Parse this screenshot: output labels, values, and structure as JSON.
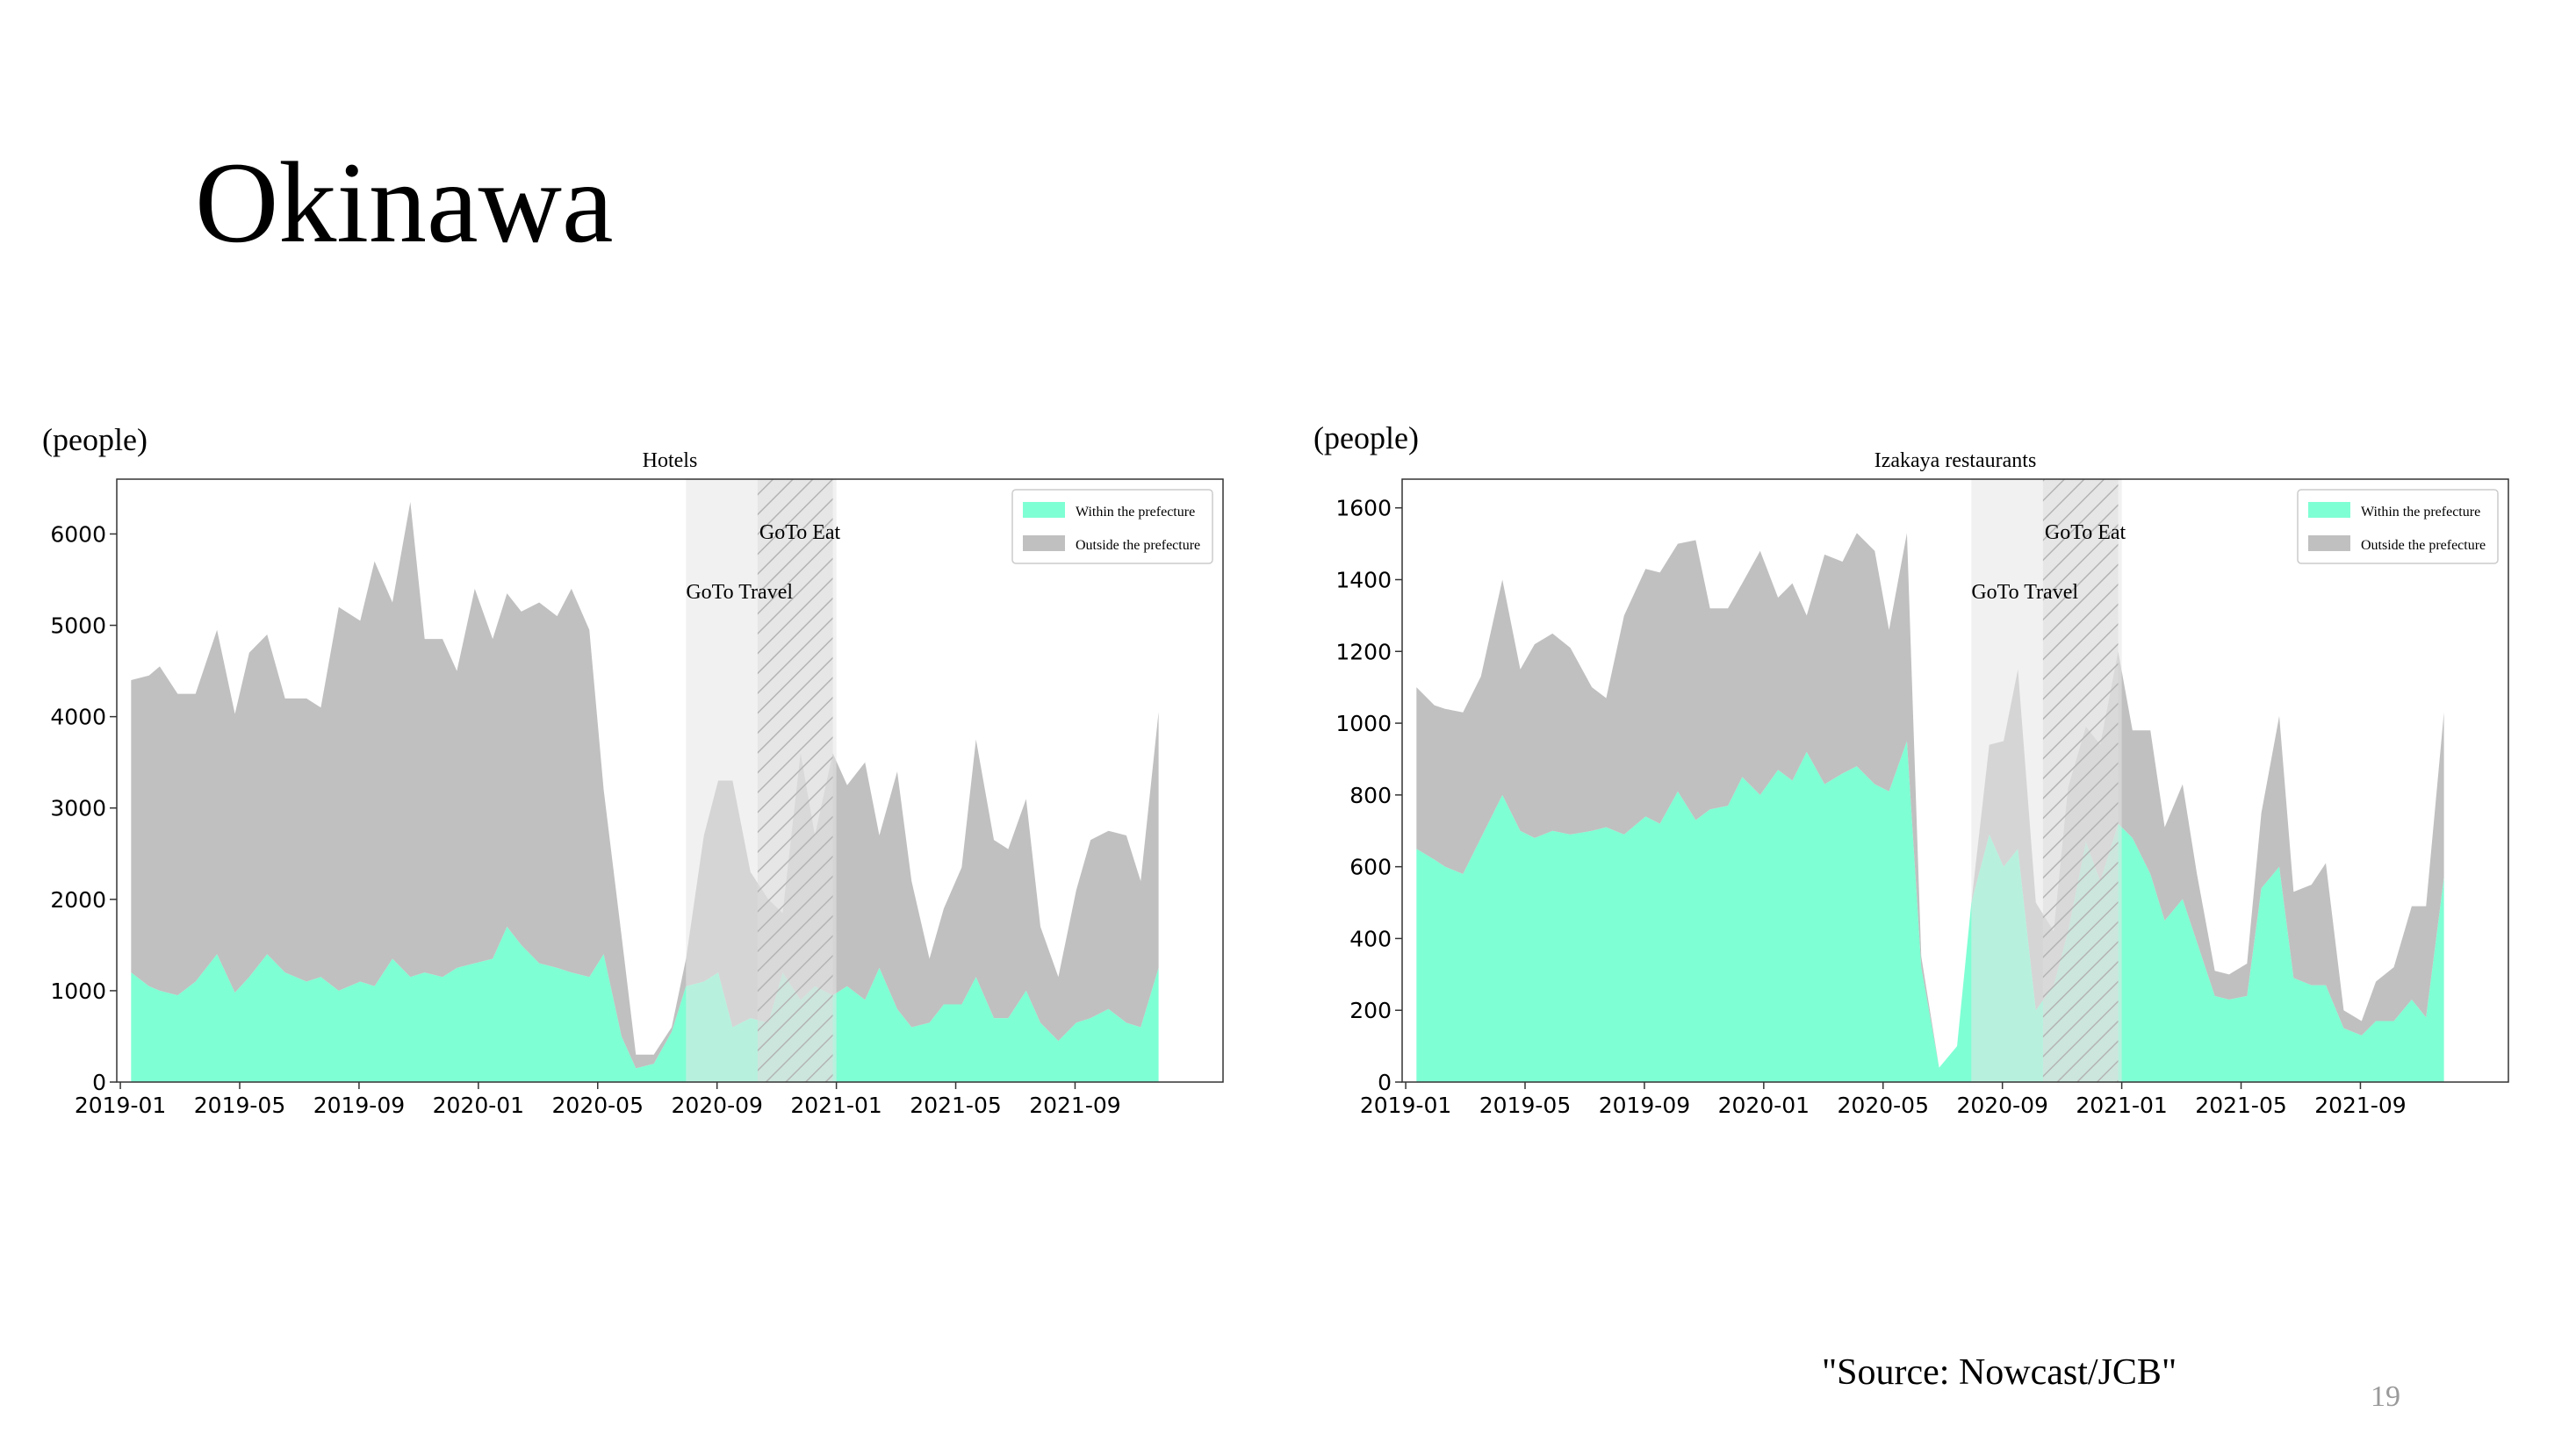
{
  "slide": {
    "title": "Okinawa",
    "source": "\"Source: Nowcast/JCB\"",
    "page_number": "19"
  },
  "colors": {
    "within": "#7fffd4",
    "outside": "#c0c0c0",
    "period_band": "#e6e6e6"
  },
  "chart_data": [
    {
      "type": "area",
      "title": "Hotels",
      "ylabel": "(people)",
      "xlabel": "",
      "x_ticks": [
        "2019-01",
        "2019-05",
        "2019-09",
        "2020-01",
        "2020-05",
        "2020-09",
        "2021-01",
        "2021-05",
        "2021-09"
      ],
      "ylim": [
        0,
        6600
      ],
      "y_ticks": [
        0,
        1000,
        2000,
        3000,
        4000,
        5000,
        6000
      ],
      "stacked": true,
      "legend": {
        "placement": "top-right",
        "items": [
          "Within the prefecture",
          "Outside the prefecture"
        ]
      },
      "periods": [
        {
          "label": "GoTo Travel",
          "start": 2020.58,
          "end": 2021.0
        },
        {
          "label": "GoTo Eat",
          "start": 2020.78,
          "end": 2020.99
        }
      ],
      "x": [
        2019.03,
        2019.08,
        2019.11,
        2019.16,
        2019.21,
        2019.27,
        2019.32,
        2019.36,
        2019.41,
        2019.46,
        2019.52,
        2019.56,
        2019.61,
        2019.67,
        2019.71,
        2019.76,
        2019.81,
        2019.85,
        2019.9,
        2019.94,
        2019.99,
        2020.04,
        2020.08,
        2020.12,
        2020.17,
        2020.22,
        2020.26,
        2020.31,
        2020.35,
        2020.4,
        2020.44,
        2020.49,
        2020.54,
        2020.58,
        2020.63,
        2020.67,
        2020.71,
        2020.76,
        2020.81,
        2020.85,
        2020.9,
        2020.94,
        2020.99,
        2021.03,
        2021.08,
        2021.12,
        2021.17,
        2021.21,
        2021.26,
        2021.3,
        2021.35,
        2021.39,
        2021.44,
        2021.48,
        2021.53,
        2021.57,
        2021.62,
        2021.67,
        2021.71,
        2021.76,
        2021.81,
        2021.85,
        2021.9
      ],
      "series": [
        {
          "name": "Within the prefecture",
          "values": [
            1200,
            1050,
            1000,
            950,
            1100,
            1400,
            980,
            1150,
            1400,
            1200,
            1100,
            1150,
            1000,
            1100,
            1050,
            1350,
            1150,
            1200,
            1150,
            1250,
            1300,
            1350,
            1700,
            1500,
            1300,
            1250,
            1200,
            1150,
            1400,
            500,
            150,
            200,
            550,
            1050,
            1100,
            1200,
            600,
            700,
            650,
            1200,
            900,
            1050,
            950,
            1050,
            900,
            1250,
            800,
            600,
            650,
            850,
            850,
            1150,
            700,
            700,
            1000,
            650,
            450,
            650,
            700,
            800,
            650,
            600,
            1250
          ]
        },
        {
          "name": "Outside the prefecture",
          "values": [
            3200,
            3400,
            3550,
            3300,
            3150,
            3550,
            3050,
            3550,
            3500,
            3000,
            3100,
            2950,
            4200,
            3950,
            4650,
            3900,
            5200,
            3650,
            3700,
            3250,
            4100,
            3500,
            3650,
            3650,
            3950,
            3850,
            4200,
            3800,
            1800,
            1100,
            150,
            100,
            50,
            300,
            1600,
            2100,
            2700,
            1600,
            1350,
            650,
            2700,
            1650,
            2650,
            2200,
            2600,
            1450,
            2600,
            1600,
            700,
            1050,
            1500,
            2600,
            1950,
            1850,
            2100,
            1050,
            700,
            1450,
            1950,
            1950,
            2050,
            1600,
            2800
          ]
        }
      ]
    },
    {
      "type": "area",
      "title": "Izakaya restaurants",
      "ylabel": "(people)",
      "xlabel": "",
      "x_ticks": [
        "2019-01",
        "2019-05",
        "2019-09",
        "2020-01",
        "2020-05",
        "2020-09",
        "2021-01",
        "2021-05",
        "2021-09"
      ],
      "ylim": [
        0,
        1680
      ],
      "y_ticks": [
        0,
        200,
        400,
        600,
        800,
        1000,
        1200,
        1400,
        1600
      ],
      "stacked": true,
      "legend": {
        "placement": "top-right",
        "items": [
          "Within the prefecture",
          "Outside the prefecture"
        ]
      },
      "periods": [
        {
          "label": "GoTo Travel",
          "start": 2020.58,
          "end": 2021.0
        },
        {
          "label": "GoTo Eat",
          "start": 2020.78,
          "end": 2020.99
        }
      ],
      "x": [
        2019.03,
        2019.08,
        2019.11,
        2019.16,
        2019.21,
        2019.27,
        2019.32,
        2019.36,
        2019.41,
        2019.46,
        2019.52,
        2019.56,
        2019.61,
        2019.67,
        2019.71,
        2019.76,
        2019.81,
        2019.85,
        2019.9,
        2019.94,
        2019.99,
        2020.04,
        2020.08,
        2020.12,
        2020.17,
        2020.22,
        2020.26,
        2020.31,
        2020.35,
        2020.4,
        2020.44,
        2020.49,
        2020.54,
        2020.58,
        2020.63,
        2020.67,
        2020.71,
        2020.76,
        2020.81,
        2020.85,
        2020.9,
        2020.94,
        2020.99,
        2021.03,
        2021.08,
        2021.12,
        2021.17,
        2021.21,
        2021.26,
        2021.3,
        2021.35,
        2021.39,
        2021.44,
        2021.48,
        2021.53,
        2021.57,
        2021.62,
        2021.67,
        2021.71,
        2021.76,
        2021.81,
        2021.85,
        2021.9
      ],
      "series": [
        {
          "name": "Within the prefecture",
          "values": [
            650,
            620,
            600,
            580,
            680,
            800,
            700,
            680,
            700,
            690,
            700,
            710,
            690,
            740,
            720,
            810,
            730,
            760,
            770,
            850,
            800,
            870,
            840,
            920,
            830,
            860,
            880,
            830,
            810,
            950,
            320,
            40,
            100,
            500,
            690,
            600,
            650,
            200,
            270,
            420,
            670,
            560,
            720,
            680,
            580,
            450,
            510,
            390,
            240,
            230,
            240,
            540,
            600,
            290,
            270,
            270,
            150,
            130,
            170,
            170,
            230,
            180,
            570
          ]
        },
        {
          "name": "Outside the prefecture",
          "values": [
            450,
            430,
            440,
            450,
            450,
            600,
            450,
            540,
            550,
            520,
            400,
            360,
            610,
            690,
            700,
            690,
            780,
            560,
            550,
            540,
            680,
            480,
            550,
            380,
            640,
            590,
            650,
            650,
            450,
            580,
            30,
            0,
            0,
            0,
            250,
            350,
            500,
            300,
            150,
            400,
            320,
            380,
            480,
            300,
            400,
            260,
            320,
            190,
            70,
            70,
            90,
            210,
            420,
            240,
            280,
            340,
            50,
            40,
            110,
            150,
            260,
            310,
            460
          ]
        }
      ]
    }
  ]
}
